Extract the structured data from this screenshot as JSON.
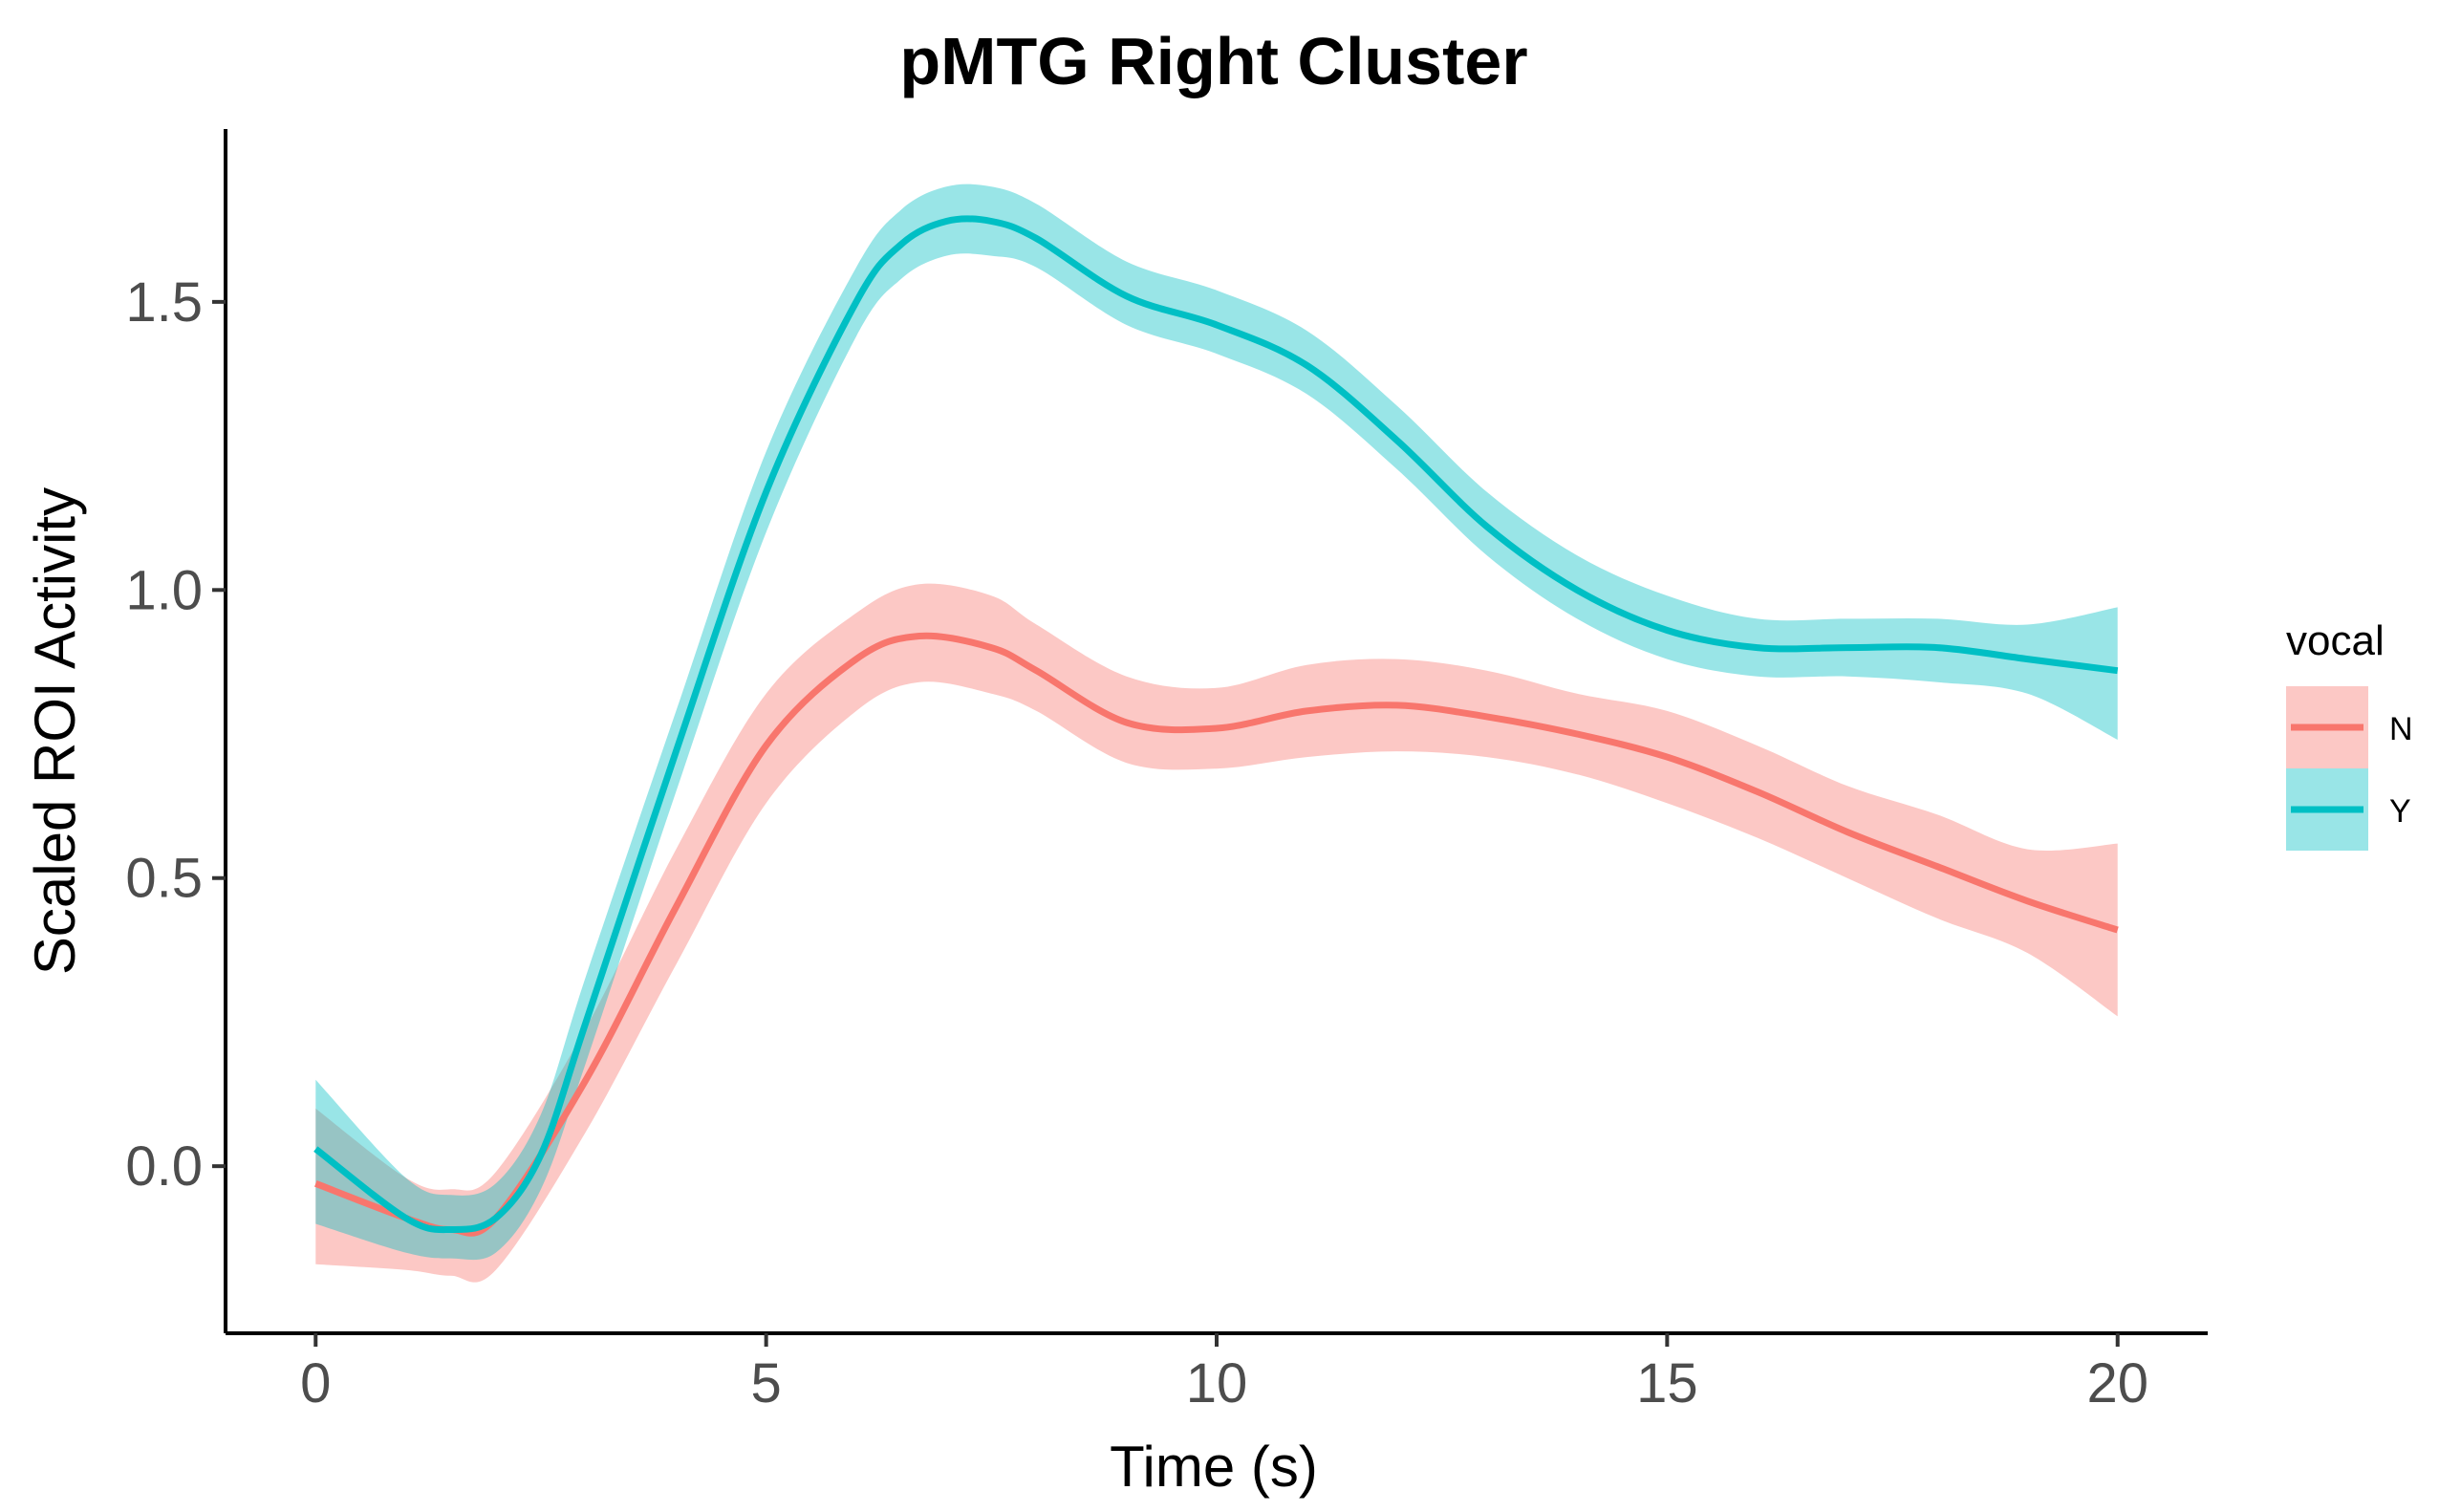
{
  "chart_data": {
    "type": "line",
    "title": "pMTG Right Cluster",
    "xlabel": "Time (s)",
    "ylabel": "Scaled ROI Activity",
    "xlim": [
      -1,
      21
    ],
    "ylim": [
      -0.29,
      1.8
    ],
    "x_ticks": [
      0,
      5,
      10,
      15,
      20
    ],
    "x_tick_labels": [
      "0",
      "5",
      "10",
      "15",
      "20"
    ],
    "y_ticks": [
      0.0,
      0.5,
      1.0,
      1.5
    ],
    "y_tick_labels": [
      "0.0",
      "0.5",
      "1.0",
      "1.5"
    ],
    "grid": false,
    "legend": {
      "title": "vocal",
      "position": "right"
    },
    "band_opacity": 0.4,
    "series": [
      {
        "name": "N",
        "color": "#F8766D",
        "x": [
          0,
          1,
          1.5,
          2,
          3,
          4,
          5,
          6,
          6.7,
          7.5,
          8,
          9,
          10,
          11,
          12,
          13,
          14,
          15,
          16,
          17,
          18,
          19,
          20
        ],
        "y": [
          -0.03,
          -0.09,
          -0.11,
          -0.09,
          0.15,
          0.45,
          0.73,
          0.88,
          0.92,
          0.9,
          0.86,
          0.77,
          0.76,
          0.79,
          0.8,
          0.78,
          0.75,
          0.71,
          0.65,
          0.58,
          0.52,
          0.46,
          0.41
        ],
        "lower": [
          -0.17,
          -0.18,
          -0.19,
          -0.18,
          0.06,
          0.35,
          0.63,
          0.79,
          0.84,
          0.82,
          0.79,
          0.7,
          0.69,
          0.71,
          0.72,
          0.71,
          0.68,
          0.63,
          0.57,
          0.5,
          0.43,
          0.37,
          0.26
        ],
        "upper": [
          0.1,
          -0.02,
          -0.04,
          -0.01,
          0.24,
          0.55,
          0.82,
          0.96,
          1.01,
          0.99,
          0.94,
          0.85,
          0.83,
          0.87,
          0.88,
          0.86,
          0.82,
          0.79,
          0.73,
          0.66,
          0.61,
          0.55,
          0.56
        ]
      },
      {
        "name": "Y",
        "color": "#00BFC4",
        "x": [
          0,
          1,
          1.5,
          2,
          2.5,
          3,
          4,
          5,
          6,
          6.5,
          7,
          7.5,
          8,
          9,
          10,
          11,
          12,
          13,
          14,
          15,
          16,
          17,
          18,
          19,
          20
        ],
        "y": [
          0.03,
          -0.09,
          -0.11,
          -0.09,
          0.02,
          0.25,
          0.72,
          1.17,
          1.5,
          1.6,
          1.64,
          1.64,
          1.61,
          1.51,
          1.46,
          1.39,
          1.26,
          1.11,
          1.0,
          0.93,
          0.9,
          0.9,
          0.9,
          0.88,
          0.86
        ],
        "lower": [
          -0.1,
          -0.15,
          -0.16,
          -0.15,
          -0.04,
          0.18,
          0.65,
          1.1,
          1.44,
          1.54,
          1.58,
          1.58,
          1.56,
          1.46,
          1.41,
          1.34,
          1.21,
          1.06,
          0.95,
          0.88,
          0.85,
          0.85,
          0.84,
          0.82,
          0.74
        ],
        "upper": [
          0.15,
          -0.02,
          -0.05,
          -0.03,
          0.09,
          0.33,
          0.79,
          1.24,
          1.56,
          1.66,
          1.7,
          1.7,
          1.67,
          1.57,
          1.52,
          1.45,
          1.32,
          1.17,
          1.06,
          0.99,
          0.95,
          0.95,
          0.95,
          0.94,
          0.97
        ]
      }
    ]
  }
}
